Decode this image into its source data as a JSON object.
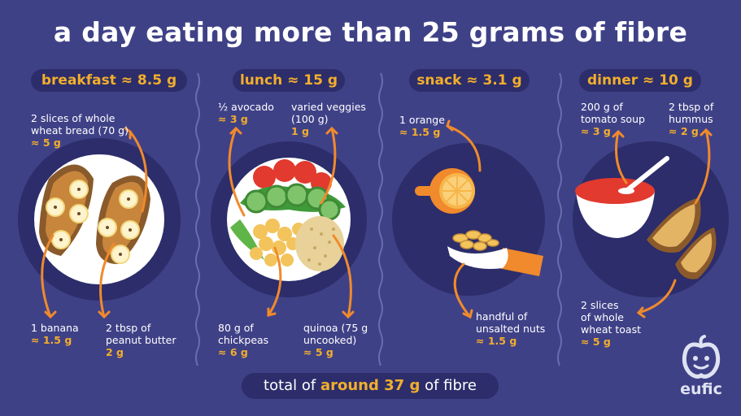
{
  "title": "a day eating more than 25 grams of fibre",
  "meals": {
    "breakfast": {
      "heading": "breakfast ≈ 8.5 g",
      "items": [
        {
          "text": "2 slices of whole\nwheat bread (70 g)",
          "amount": "≈ 5 g"
        },
        {
          "text": "1 banana",
          "amount": "≈ 1.5 g"
        },
        {
          "text": "2 tbsp of\npeanut butter",
          "amount": "2 g"
        }
      ]
    },
    "lunch": {
      "heading": "lunch ≈ 15 g",
      "items": [
        {
          "text": "½ avocado",
          "amount": "≈ 3 g"
        },
        {
          "text": "varied veggies\n(100 g)",
          "amount": "1 g"
        },
        {
          "text": "80 g of\nchickpeas",
          "amount": "≈ 6 g"
        },
        {
          "text": "quinoa (75 g\nuncooked)",
          "amount": "≈ 5 g"
        }
      ]
    },
    "snack": {
      "heading": "snack ≈ 3.1 g",
      "items": [
        {
          "text": "1 orange",
          "amount": "≈ 1.5 g"
        },
        {
          "text": "handful of\nunsalted nuts",
          "amount": "≈ 1.5 g"
        }
      ]
    },
    "dinner": {
      "heading": "dinner ≈ 10 g",
      "items": [
        {
          "text": "200 g of\ntomato soup",
          "amount": "≈ 3 g"
        },
        {
          "text": "2 tbsp of\nhummus",
          "amount": "≈ 2 g"
        },
        {
          "text": "2 slices\nof whole\nwheat toast",
          "amount": "≈ 5 g"
        }
      ]
    }
  },
  "total": {
    "prefix": "total of ",
    "highlight": "around 37 g",
    "suffix": " of fibre"
  },
  "logo": {
    "text": "eufic",
    "icon": "eufic-apple-icon"
  },
  "colors": {
    "background": "#3f4187",
    "accent": "#f2ae2c",
    "plate": "#2c2d6a",
    "pill": "#2c2d6a"
  }
}
